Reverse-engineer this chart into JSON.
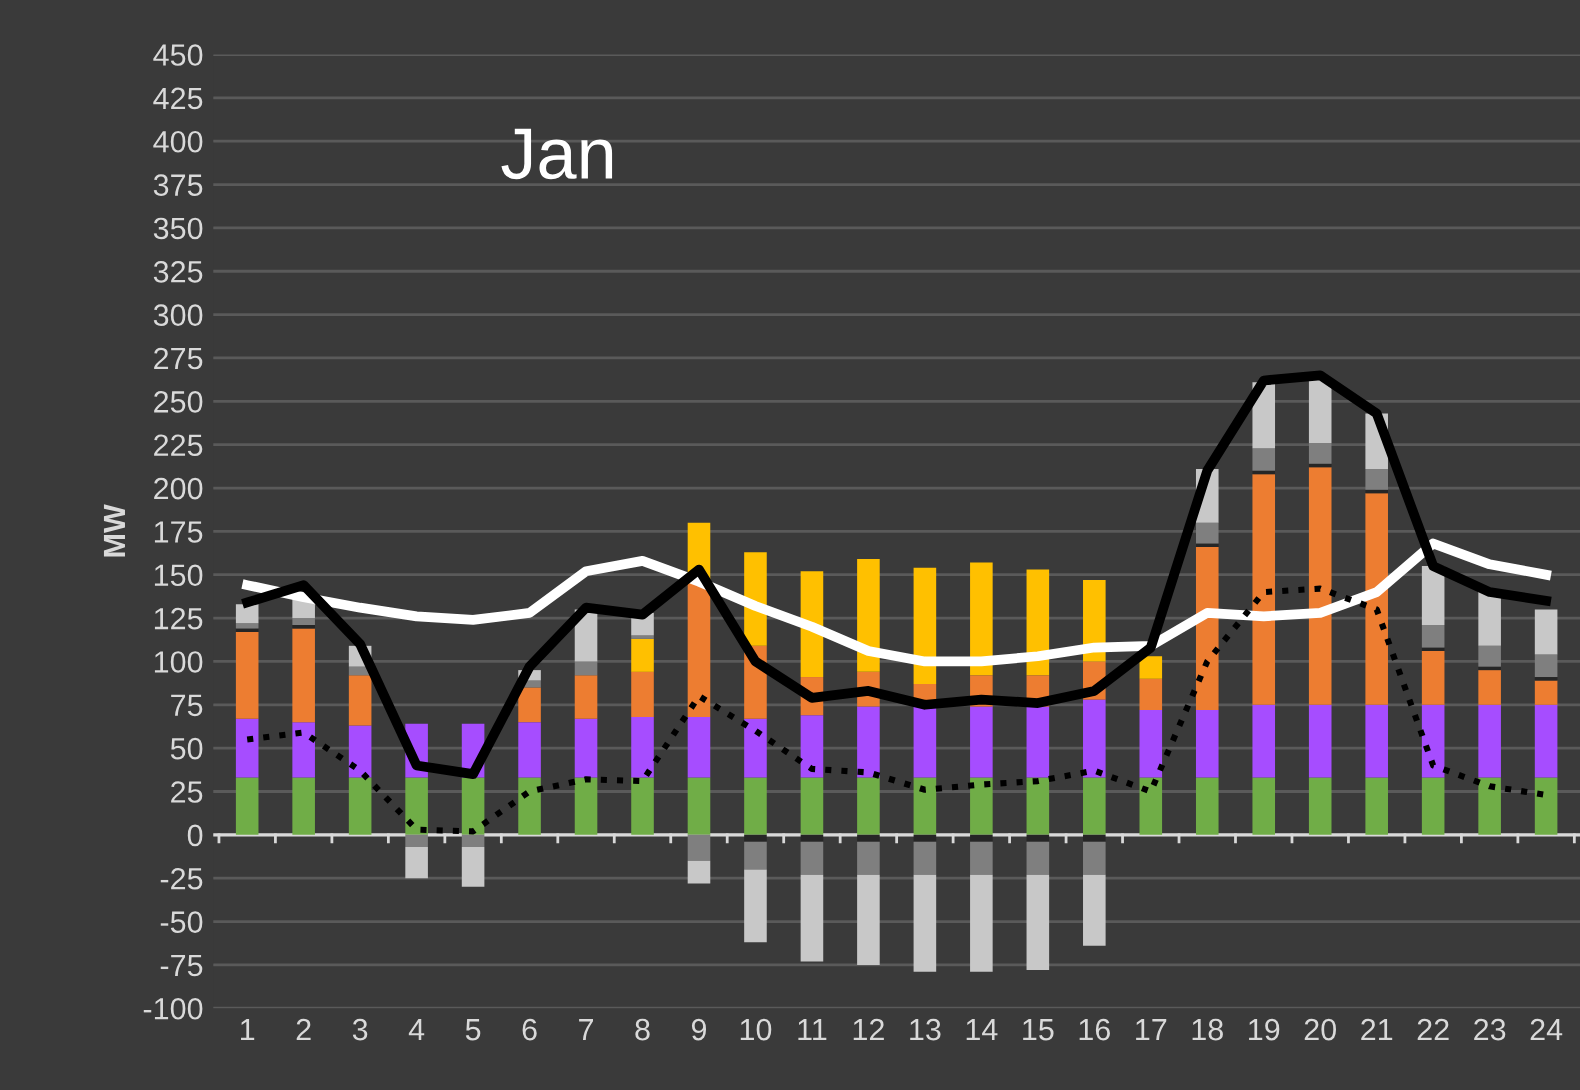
{
  "chart_data": {
    "type": "bar",
    "title": "Jan",
    "ylabel": "MW",
    "stacked": true,
    "categories": [
      "1",
      "2",
      "3",
      "4",
      "5",
      "6",
      "7",
      "8",
      "9",
      "10",
      "11",
      "12",
      "13",
      "14",
      "15",
      "16",
      "17",
      "18",
      "19",
      "20",
      "21",
      "22",
      "23",
      "24"
    ],
    "series": [
      {
        "color": "#70ad47",
        "values": [
          33,
          33,
          33,
          33,
          33,
          33,
          33,
          33,
          33,
          33,
          33,
          33,
          33,
          33,
          33,
          33,
          33,
          33,
          33,
          33,
          33,
          33,
          33,
          33
        ]
      },
      {
        "color": "#a64dff",
        "values": [
          34,
          32,
          30,
          31,
          31,
          32,
          34,
          35,
          35,
          34,
          36,
          41,
          41,
          41,
          41,
          45,
          39,
          39,
          42,
          42,
          42,
          42,
          42,
          42
        ]
      },
      {
        "color": "#ed7d31",
        "values": [
          50,
          54,
          29,
          null,
          null,
          20,
          25,
          26,
          77,
          42,
          22,
          20,
          13,
          18,
          18,
          22,
          18,
          94,
          133,
          137,
          122,
          31,
          20,
          14
        ]
      },
      {
        "color": "#ffc000",
        "values": [
          null,
          null,
          null,
          null,
          null,
          null,
          null,
          19,
          35,
          54,
          61,
          65,
          67,
          65,
          61,
          47,
          13,
          null,
          null,
          null,
          null,
          null,
          null,
          null
        ]
      },
      {
        "color": "#262626",
        "values": [
          2,
          2,
          null,
          null,
          null,
          null,
          null,
          null,
          null,
          -4,
          -4,
          -4,
          -4,
          -4,
          -4,
          -4,
          null,
          2,
          2,
          2,
          2,
          2,
          2,
          2
        ]
      },
      {
        "color": "#7f7f7f",
        "values": [
          3,
          4,
          5,
          -7,
          -7,
          4,
          8,
          2,
          -15,
          -16,
          -19,
          -19,
          -19,
          -19,
          -19,
          -19,
          null,
          12,
          13,
          12,
          12,
          13,
          12,
          13
        ]
      },
      {
        "color": "#c8c8c8",
        "values": [
          11,
          15,
          12,
          -18,
          -23,
          6,
          30,
          13,
          -13,
          -42,
          -50,
          -52,
          -56,
          -56,
          -55,
          -41,
          null,
          31,
          38,
          37,
          32,
          34,
          32,
          26
        ]
      },
      {
        "type": "line",
        "color": "#ffffff",
        "line_style": "solid",
        "values": [
          144,
          137,
          131,
          126,
          124,
          128,
          152,
          158,
          146,
          132,
          120,
          106,
          100,
          100,
          103,
          108,
          109,
          128,
          126,
          128,
          140,
          168,
          156,
          150
        ]
      },
      {
        "type": "line",
        "color": "#000000",
        "line_style": "solid",
        "values": [
          134,
          144,
          110,
          40,
          35,
          97,
          131,
          127,
          153,
          100,
          79,
          83,
          75,
          78,
          76,
          83,
          108,
          210,
          262,
          265,
          243,
          155,
          140,
          135
        ]
      },
      {
        "type": "line",
        "color": "#000000",
        "line_style": "dotted",
        "values": [
          55,
          59,
          37,
          3,
          2,
          25,
          32,
          31,
          80,
          60,
          38,
          36,
          26,
          29,
          31,
          37,
          25,
          100,
          140,
          142,
          130,
          40,
          28,
          23
        ]
      }
    ],
    "ylim": [
      -100,
      450
    ],
    "yticks": [
      -100,
      -75,
      -50,
      -25,
      0,
      25,
      50,
      75,
      100,
      125,
      150,
      175,
      200,
      225,
      250,
      275,
      300,
      325,
      350,
      375,
      400,
      425,
      450
    ],
    "grid": "y",
    "legend": false
  }
}
